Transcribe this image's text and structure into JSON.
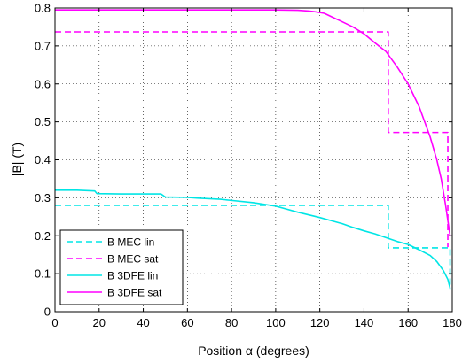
{
  "chart_data": {
    "type": "line",
    "xlabel": "Position α (degrees)",
    "ylabel": "|B| (T)",
    "xlim": [
      0,
      180
    ],
    "ylim": [
      0,
      0.8
    ],
    "xticks": [
      0,
      20,
      40,
      60,
      80,
      100,
      120,
      140,
      160,
      180
    ],
    "yticks": [
      0,
      0.1,
      0.2,
      0.3,
      0.4,
      0.5,
      0.6,
      0.7,
      0.8
    ],
    "xtick_labels": [
      "0",
      "20",
      "40",
      "60",
      "80",
      "100",
      "120",
      "140",
      "160",
      "180"
    ],
    "ytick_labels": [
      "0",
      "0.1",
      "0.2",
      "0.3",
      "0.4",
      "0.5",
      "0.6",
      "0.7",
      "0.8"
    ],
    "grid": "dotted",
    "legend_position": "bottom-left",
    "series": [
      {
        "name": "B MEC lin",
        "color": "#00e5e5",
        "style": "dashed",
        "points": [
          [
            0,
            0.28
          ],
          [
            151,
            0.28
          ],
          [
            151,
            0.168
          ],
          [
            179,
            0.168
          ],
          [
            179,
            0.06
          ]
        ]
      },
      {
        "name": "B MEC sat",
        "color": "#ff00ff",
        "style": "dashed",
        "points": [
          [
            0,
            0.737
          ],
          [
            151,
            0.737
          ],
          [
            151,
            0.472
          ],
          [
            178,
            0.472
          ],
          [
            178,
            0.17
          ]
        ]
      },
      {
        "name": "B 3DFE lin",
        "color": "#00e5e5",
        "style": "solid",
        "points": [
          [
            0,
            0.32
          ],
          [
            10,
            0.32
          ],
          [
            18,
            0.318
          ],
          [
            19,
            0.311
          ],
          [
            30,
            0.31
          ],
          [
            48,
            0.31
          ],
          [
            50,
            0.302
          ],
          [
            60,
            0.301
          ],
          [
            65,
            0.299
          ],
          [
            75,
            0.296
          ],
          [
            80,
            0.293
          ],
          [
            90,
            0.287
          ],
          [
            100,
            0.278
          ],
          [
            105,
            0.27
          ],
          [
            110,
            0.262
          ],
          [
            115,
            0.255
          ],
          [
            120,
            0.248
          ],
          [
            125,
            0.24
          ],
          [
            130,
            0.232
          ],
          [
            135,
            0.222
          ],
          [
            140,
            0.213
          ],
          [
            145,
            0.205
          ],
          [
            150,
            0.195
          ],
          [
            155,
            0.185
          ],
          [
            160,
            0.177
          ],
          [
            165,
            0.163
          ],
          [
            170,
            0.148
          ],
          [
            173,
            0.132
          ],
          [
            176,
            0.108
          ],
          [
            178,
            0.085
          ],
          [
            179,
            0.062
          ]
        ]
      },
      {
        "name": "B 3DFE sat",
        "color": "#ff00ff",
        "style": "solid",
        "points": [
          [
            0,
            0.795
          ],
          [
            100,
            0.795
          ],
          [
            110,
            0.794
          ],
          [
            115,
            0.792
          ],
          [
            118,
            0.79
          ],
          [
            122,
            0.786
          ],
          [
            126,
            0.775
          ],
          [
            130,
            0.764
          ],
          [
            135,
            0.75
          ],
          [
            140,
            0.732
          ],
          [
            145,
            0.708
          ],
          [
            150,
            0.685
          ],
          [
            155,
            0.645
          ],
          [
            160,
            0.6
          ],
          [
            165,
            0.54
          ],
          [
            170,
            0.46
          ],
          [
            173,
            0.4
          ],
          [
            175,
            0.35
          ],
          [
            177,
            0.28
          ],
          [
            178,
            0.24
          ],
          [
            179,
            0.2
          ]
        ]
      }
    ]
  }
}
